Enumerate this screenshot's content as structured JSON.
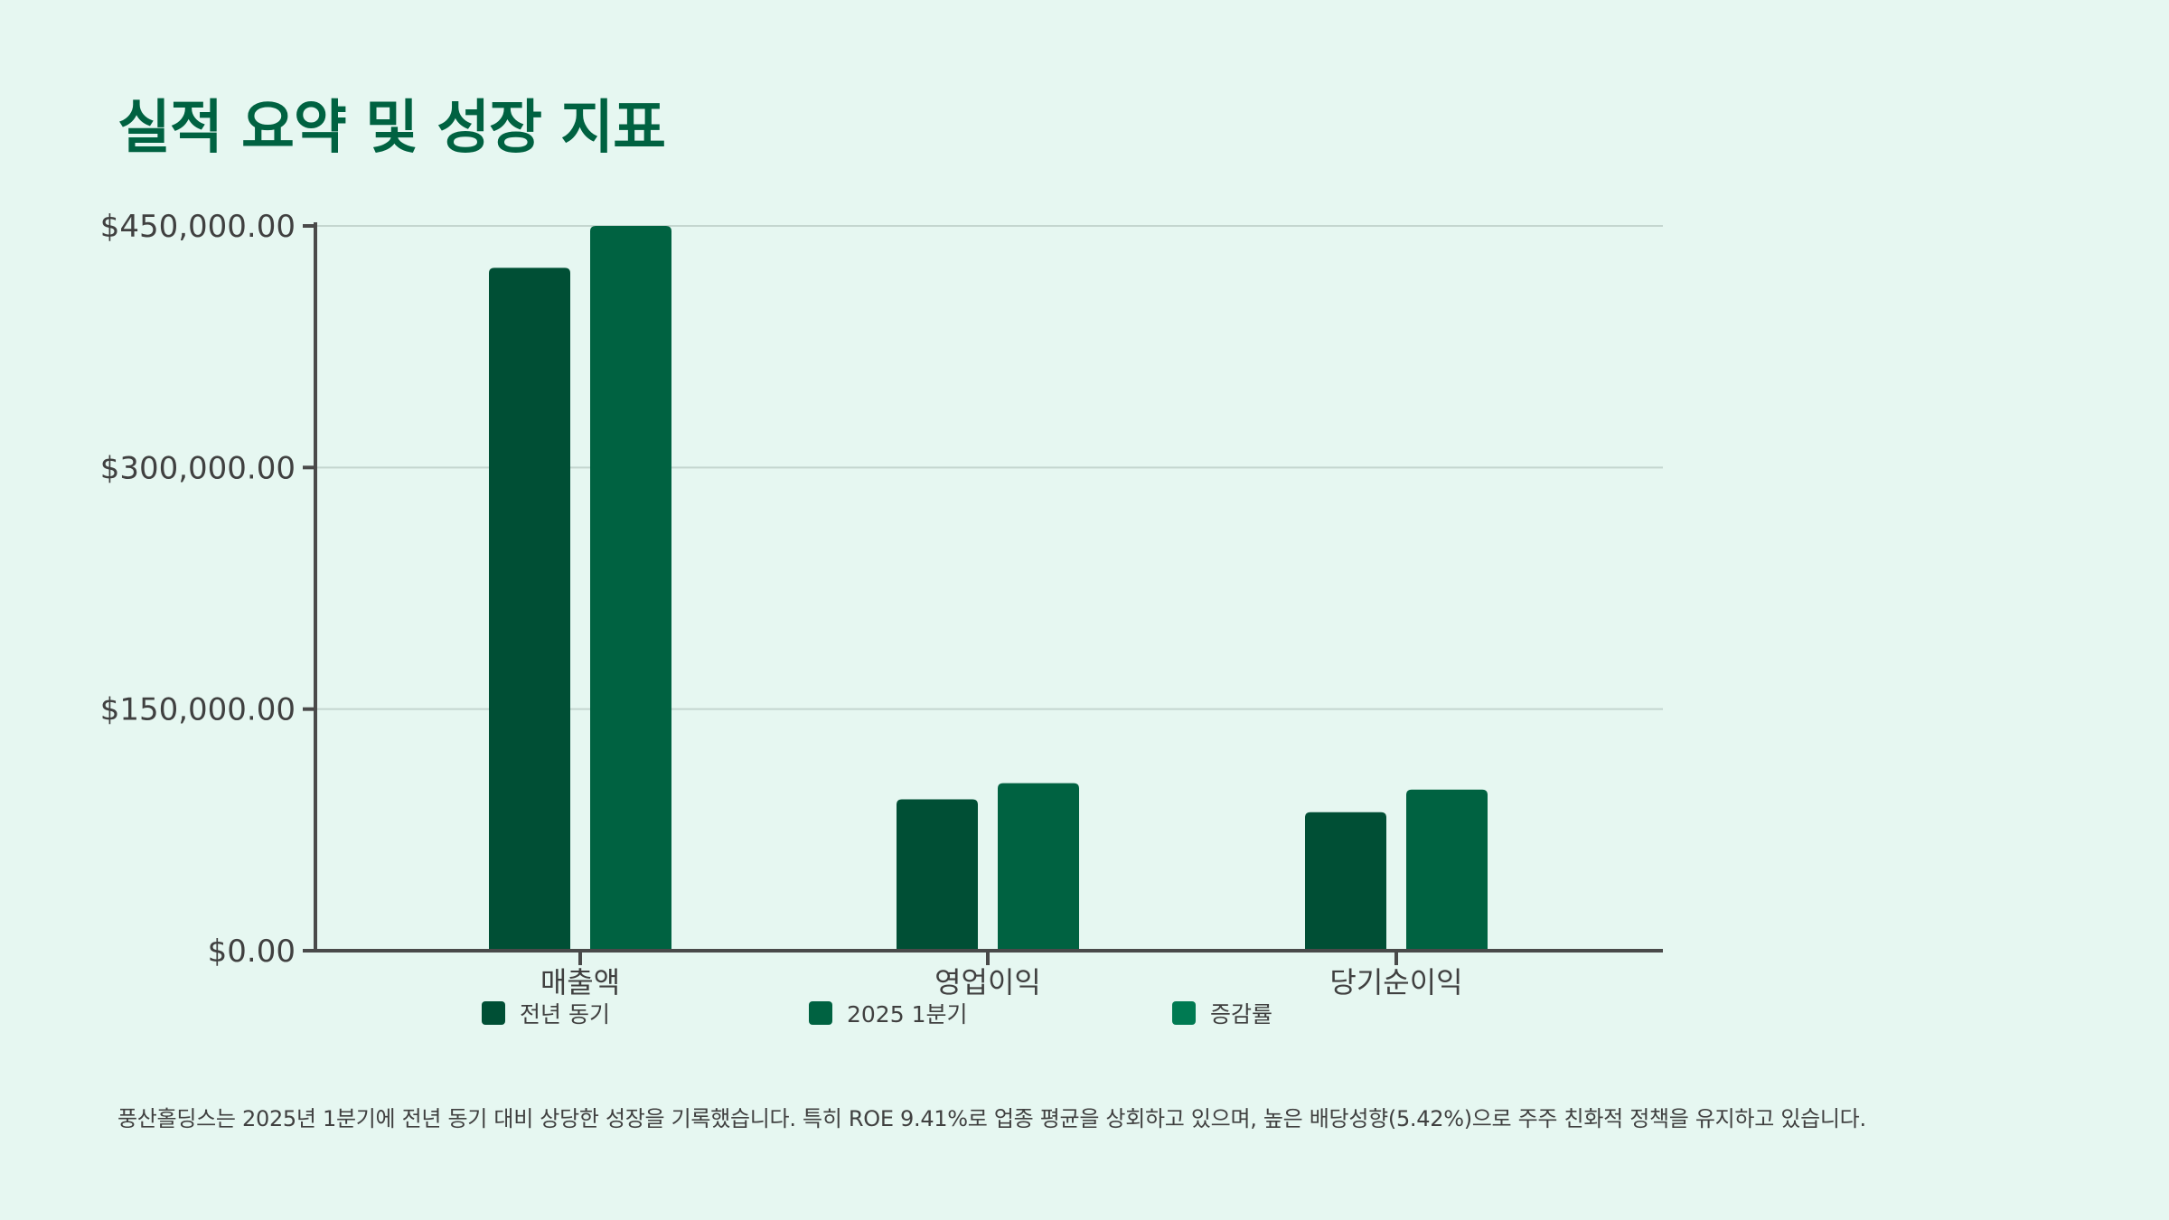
{
  "title": "실적 요약 및 성장 지표",
  "footnote": "풍산홀딩스는 2025년 1분기에 전년 동기 대비 상당한 성장을 기록했습니다. 특히 ROE 9.41%로 업종 평균을 상회하고 있으며, 높은 배당성향(5.42%)으로 주주 친화적 정책을 유지하고 있습니다.",
  "colors": {
    "background": "#e6f7f1",
    "title": "#006241",
    "axis": "#4a4a4a",
    "grid": "#c4d6cf",
    "tick_text": "#404040"
  },
  "chart_data": {
    "type": "bar",
    "title": "",
    "xlabel": "",
    "ylabel": "",
    "categories": [
      "매출액",
      "영업이익",
      "당기순이익"
    ],
    "ylim": [
      0,
      450000
    ],
    "yticks": [
      0,
      150000,
      300000,
      450000
    ],
    "ytick_labels": [
      "$0.00",
      "$150,000.00",
      "$300,000.00",
      "$450,000.00"
    ],
    "grid": true,
    "legend_position": "bottom",
    "series": [
      {
        "name": "전년 동기",
        "color": "#004f35",
        "values": [
          424000,
          94000,
          86000
        ]
      },
      {
        "name": "2025 1분기",
        "color": "#006241",
        "values": [
          450000,
          104000,
          100000
        ]
      },
      {
        "name": "증감률",
        "color": "#007a52",
        "values": [
          null,
          null,
          null
        ]
      }
    ]
  }
}
